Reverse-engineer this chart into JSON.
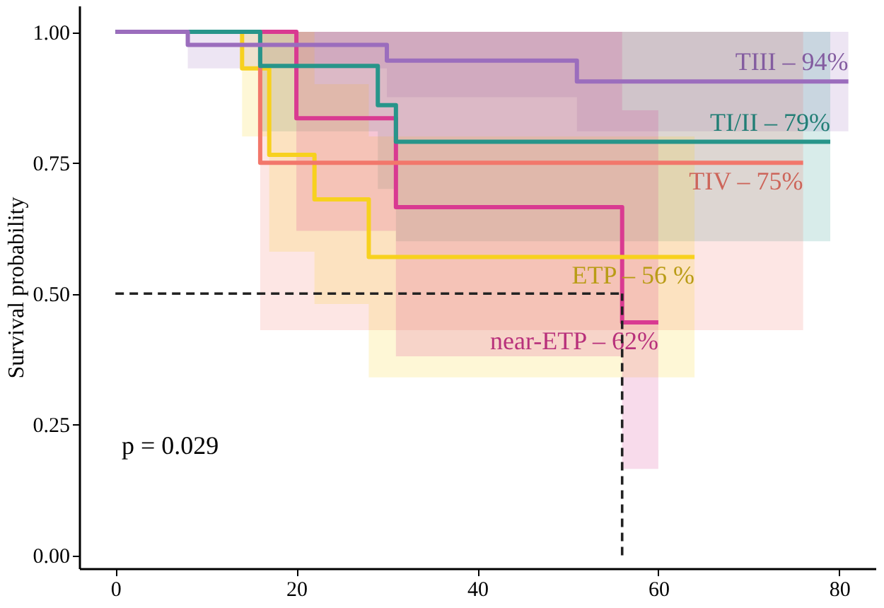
{
  "chart_data": {
    "type": "step",
    "ylabel": "Survival probability",
    "xlim": [
      -4,
      84
    ],
    "xticks": [
      0,
      20,
      40,
      60,
      80
    ],
    "ylim": [
      -0.025,
      1.05
    ],
    "yticks": [
      {
        "value": 0,
        "label": "0.00"
      },
      {
        "value": 0.25,
        "label": "0.25"
      },
      {
        "value": 0.5,
        "label": "0.50"
      },
      {
        "value": 0.75,
        "label": "0.75"
      },
      {
        "value": 1,
        "label": "1.00"
      }
    ],
    "grid": false,
    "line_style": "solid",
    "marker": "none",
    "series": [
      {
        "name": "TIII – 94%",
        "color": "#9b6dbd",
        "x": [
          0,
          8,
          30,
          51,
          81
        ],
        "values": [
          1,
          0.975,
          0.945,
          0.905,
          0.905
        ],
        "lower": [
          1,
          0.93,
          0.875,
          0.81,
          0.81
        ],
        "upper": [
          1,
          1,
          1,
          1,
          1
        ]
      },
      {
        "name": "TI/II – 79%",
        "color": "#27958a",
        "x": [
          0,
          16,
          29,
          31,
          79
        ],
        "values": [
          1,
          0.935,
          0.86,
          0.79,
          0.79
        ],
        "lower": [
          1,
          0.81,
          0.7,
          0.6,
          0.6
        ],
        "upper": [
          1,
          1,
          1,
          1,
          1
        ]
      },
      {
        "name": "TIV – 75%",
        "color": "#f2776b",
        "x": [
          0,
          16,
          76
        ],
        "values": [
          1,
          0.75,
          0.75
        ],
        "lower": [
          1,
          0.43,
          0.43
        ],
        "upper": [
          1,
          1,
          1
        ]
      },
      {
        "name": "ETP – 56 %",
        "color": "#f7d11e",
        "x": [
          0,
          14,
          17,
          22,
          28,
          64
        ],
        "values": [
          1,
          0.93,
          0.765,
          0.68,
          0.57,
          0.57
        ],
        "lower": [
          1,
          0.8,
          0.58,
          0.48,
          0.34,
          0.34
        ],
        "upper": [
          1,
          1,
          1,
          0.9,
          0.8,
          0.8
        ]
      },
      {
        "name": "near-ETP – 62%",
        "color": "#d93a91",
        "x": [
          0,
          20,
          31,
          56,
          60
        ],
        "values": [
          1,
          0.835,
          0.665,
          0.445,
          0.445
        ],
        "lower": [
          1,
          0.62,
          0.38,
          0.165,
          0.165
        ],
        "upper": [
          1,
          1,
          1,
          0.85,
          0.85
        ]
      }
    ],
    "ref_lines": [
      {
        "axis": "y",
        "value": 0.5,
        "line_style": "dashed",
        "color": "#222222"
      },
      {
        "axis": "x",
        "value": 56,
        "line_style": "dashed",
        "color": "#222222"
      }
    ],
    "annotations": [
      "p = 0.029"
    ]
  }
}
